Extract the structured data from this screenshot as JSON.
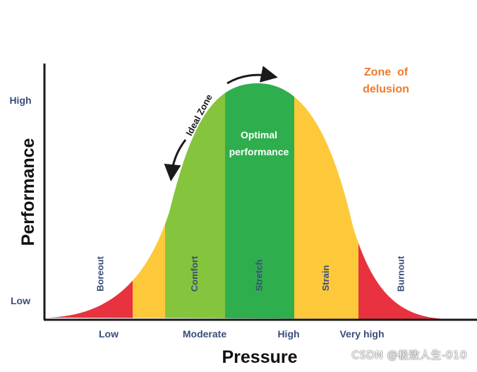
{
  "axes": {
    "y_label": "Performance",
    "x_label": "Pressure",
    "y_ticks": [
      "High",
      "Low"
    ],
    "x_ticks": [
      "Low",
      "Moderate",
      "High",
      "Very high"
    ]
  },
  "zones": [
    {
      "label": "Boreout",
      "color": "#e8323f"
    },
    {
      "label": "",
      "color": "#fdc93a"
    },
    {
      "label": "Comfort",
      "color": "#84c53d"
    },
    {
      "label": "Stretch",
      "color": "#2fae4e"
    },
    {
      "label": "Strain",
      "color": "#fdc93a"
    },
    {
      "label": "Burnout",
      "color": "#e8323f"
    }
  ],
  "center_label": [
    "Optimal",
    "performance"
  ],
  "ideal_zone_label": "Ideal Zone",
  "delusion_label": [
    "Zone  of",
    "delusion"
  ],
  "watermark": "CSDN @极致人生-010",
  "colors": {
    "axis": "#1a1a1a",
    "tick_text": "#3a4d7a",
    "delusion": "#f07a2a",
    "zone_label_light": "#ffffff"
  }
}
